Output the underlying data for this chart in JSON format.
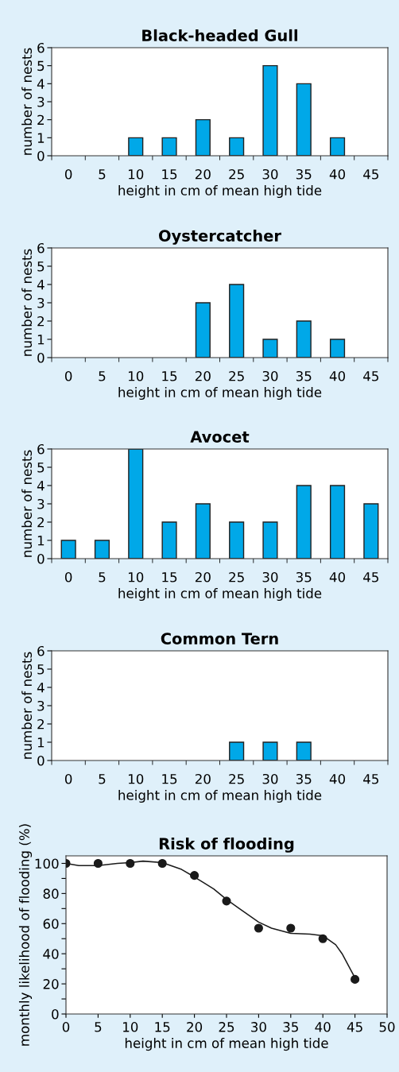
{
  "chart_data": [
    {
      "type": "bar",
      "title": "Black-headed Gull",
      "xlabel": "height in cm of mean high tide",
      "ylabel": "number of nests",
      "categories": [
        "0",
        "5",
        "10",
        "15",
        "20",
        "25",
        "30",
        "35",
        "40",
        "45"
      ],
      "values": [
        0,
        0,
        1,
        1,
        2,
        1,
        5,
        4,
        1,
        0
      ],
      "color": "#00a8e8",
      "ylim": [
        0,
        6
      ],
      "yticks": [
        0,
        1,
        2,
        3,
        4,
        5,
        6
      ],
      "grid": false,
      "legend": false
    },
    {
      "type": "bar",
      "title": "Oystercatcher",
      "xlabel": "height in cm of mean high tide",
      "ylabel": "number of nests",
      "categories": [
        "0",
        "5",
        "10",
        "15",
        "20",
        "25",
        "30",
        "35",
        "40",
        "45"
      ],
      "values": [
        0,
        0,
        0,
        0,
        3,
        4,
        1,
        2,
        1,
        0
      ],
      "color": "#00a8e8",
      "ylim": [
        0,
        6
      ],
      "yticks": [
        0,
        1,
        2,
        3,
        4,
        5,
        6
      ],
      "grid": false,
      "legend": false
    },
    {
      "type": "bar",
      "title": "Avocet",
      "xlabel": "height in cm of mean high tide",
      "ylabel": "number of nests",
      "categories": [
        "0",
        "5",
        "10",
        "15",
        "20",
        "25",
        "30",
        "35",
        "40",
        "45"
      ],
      "values": [
        1,
        1,
        6,
        2,
        3,
        2,
        2,
        4,
        4,
        3
      ],
      "color": "#00a8e8",
      "ylim": [
        0,
        6
      ],
      "yticks": [
        0,
        1,
        2,
        3,
        4,
        5,
        6
      ],
      "grid": false,
      "legend": false
    },
    {
      "type": "bar",
      "title": "Common Tern",
      "xlabel": "height in cm of mean high tide",
      "ylabel": "number of nests",
      "categories": [
        "0",
        "5",
        "10",
        "15",
        "20",
        "25",
        "30",
        "35",
        "40",
        "45"
      ],
      "values": [
        0,
        0,
        0,
        0,
        0,
        1,
        1,
        1,
        0,
        0
      ],
      "color": "#00a8e8",
      "ylim": [
        0,
        6
      ],
      "yticks": [
        0,
        1,
        2,
        3,
        4,
        5,
        6
      ],
      "grid": false,
      "legend": false
    },
    {
      "type": "scatter",
      "title": "Risk of flooding",
      "xlabel": "height in cm of mean high tide",
      "ylabel": "monthly likelihood of flooding (%)",
      "xlim": [
        0,
        50
      ],
      "xticks": [
        0,
        5,
        10,
        15,
        20,
        25,
        30,
        35,
        40,
        45,
        50
      ],
      "ylim": [
        0,
        105
      ],
      "yticks": [
        0,
        {
          "value": 10,
          "label": null
        },
        20,
        {
          "value": 30,
          "label": null
        },
        40,
        {
          "value": 50,
          "label": null
        },
        60,
        {
          "value": 70,
          "label": null
        },
        80,
        {
          "value": 90,
          "label": null
        },
        100
      ],
      "grid": false,
      "legend": false,
      "series": [
        {
          "type": "scatter",
          "color": "#1a1a1a",
          "marker": "circle",
          "x": [
            0,
            5,
            10,
            15,
            20,
            25,
            30,
            35,
            40,
            45
          ],
          "values": [
            100,
            100,
            100,
            100,
            92,
            75,
            57,
            57,
            50,
            23
          ]
        },
        {
          "type": "line",
          "color": "#1a1a1a",
          "marker": "none",
          "line_style": "solid",
          "x": [
            0,
            2,
            5,
            8,
            10,
            12,
            15,
            18,
            20,
            23,
            25,
            27,
            30,
            32,
            35,
            38,
            40,
            42,
            43,
            44,
            45
          ],
          "values": [
            100,
            98.5,
            98.5,
            100,
            100.5,
            101.5,
            100.5,
            96,
            91,
            83,
            76,
            70,
            61,
            57,
            53.5,
            53,
            52,
            46,
            40,
            32,
            24
          ]
        }
      ]
    }
  ]
}
